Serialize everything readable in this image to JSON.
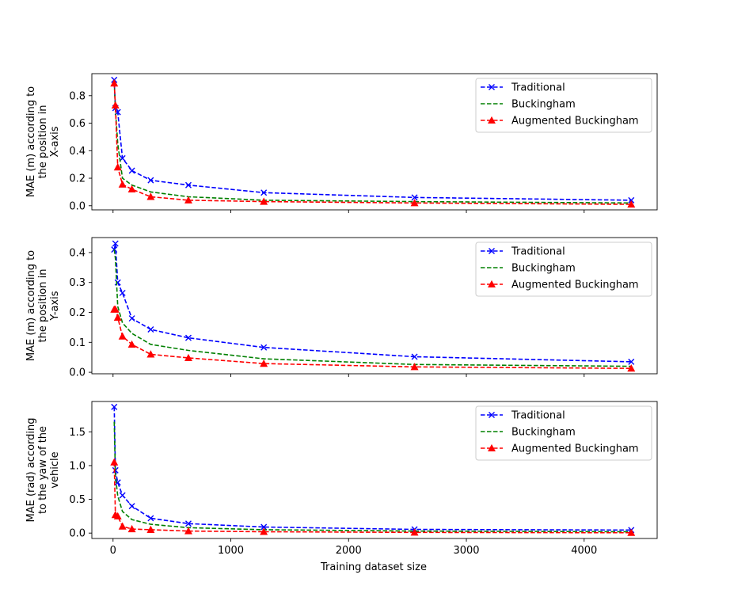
{
  "figure": {
    "xlabel": "Training dataset size"
  },
  "colors": {
    "Traditional": "#0000ff",
    "Buckingham": "#008000",
    "Augmented Buckingham": "#ff0000"
  },
  "chart_data": [
    {
      "type": "line",
      "ylabel_lines": [
        "MAE (m) according to",
        "the position in",
        "X-axis"
      ],
      "xlim": [
        -180,
        4620
      ],
      "ylim": [
        -0.03,
        0.96
      ],
      "xticks": [
        0,
        1000,
        2000,
        3000,
        4000
      ],
      "yticks": [
        0.0,
        0.2,
        0.4,
        0.6,
        0.8
      ],
      "ytick_labels": [
        "0.0",
        "0.2",
        "0.4",
        "0.6",
        "0.8"
      ],
      "legend_position": "top-right",
      "x": [
        10,
        20,
        40,
        80,
        160,
        320,
        640,
        1280,
        2560,
        4400
      ],
      "series": [
        {
          "name": "Traditional",
          "marker": "x",
          "values": [
            0.915,
            0.71,
            0.68,
            0.345,
            0.255,
            0.185,
            0.15,
            0.095,
            0.06,
            0.04
          ]
        },
        {
          "name": "Buckingham",
          "marker": "none",
          "values": [
            0.9,
            0.7,
            0.45,
            0.2,
            0.15,
            0.1,
            0.065,
            0.04,
            0.03,
            0.02
          ]
        },
        {
          "name": "Augmented Buckingham",
          "marker": "triangle",
          "values": [
            0.89,
            0.73,
            0.28,
            0.155,
            0.12,
            0.065,
            0.04,
            0.03,
            0.02,
            0.01
          ]
        }
      ]
    },
    {
      "type": "line",
      "ylabel_lines": [
        "MAE (m) according to",
        "the position in",
        "Y-axis"
      ],
      "xlim": [
        -180,
        4620
      ],
      "ylim": [
        -0.005,
        0.45
      ],
      "xticks": [
        0,
        1000,
        2000,
        3000,
        4000
      ],
      "yticks": [
        0.0,
        0.1,
        0.2,
        0.3,
        0.4
      ],
      "ytick_labels": [
        "0.0",
        "0.1",
        "0.2",
        "0.3",
        "0.4"
      ],
      "legend_position": "top-right",
      "x": [
        10,
        20,
        40,
        80,
        160,
        320,
        640,
        1280,
        2560,
        4400
      ],
      "series": [
        {
          "name": "Traditional",
          "marker": "x",
          "values": [
            0.41,
            0.43,
            0.3,
            0.265,
            0.18,
            0.143,
            0.115,
            0.083,
            0.052,
            0.035
          ]
        },
        {
          "name": "Buckingham",
          "marker": "none",
          "values": [
            0.41,
            0.38,
            0.22,
            0.165,
            0.13,
            0.093,
            0.073,
            0.045,
            0.026,
            0.02
          ]
        },
        {
          "name": "Augmented Buckingham",
          "marker": "triangle",
          "values": [
            0.21,
            0.21,
            0.183,
            0.12,
            0.093,
            0.06,
            0.048,
            0.029,
            0.018,
            0.013
          ]
        }
      ]
    },
    {
      "type": "line",
      "ylabel_lines": [
        "MAE (rad) according",
        "to the yaw of the",
        "vehicle"
      ],
      "xlim": [
        -180,
        4620
      ],
      "ylim": [
        -0.08,
        1.95
      ],
      "xticks": [
        0,
        1000,
        2000,
        3000,
        4000
      ],
      "yticks": [
        0.0,
        0.5,
        1.0,
        1.5
      ],
      "ytick_labels": [
        "0.0",
        "0.5",
        "1.0",
        "1.5"
      ],
      "legend_position": "top-right",
      "x": [
        10,
        20,
        40,
        80,
        160,
        320,
        640,
        1280,
        2560,
        4400
      ],
      "series": [
        {
          "name": "Traditional",
          "marker": "x",
          "values": [
            1.87,
            0.93,
            0.75,
            0.56,
            0.4,
            0.22,
            0.14,
            0.09,
            0.055,
            0.045
          ]
        },
        {
          "name": "Buckingham",
          "marker": "none",
          "values": [
            1.65,
            0.85,
            0.55,
            0.32,
            0.2,
            0.13,
            0.08,
            0.05,
            0.03,
            0.02
          ]
        },
        {
          "name": "Augmented Buckingham",
          "marker": "triangle",
          "values": [
            1.05,
            0.27,
            0.25,
            0.1,
            0.06,
            0.05,
            0.03,
            0.02,
            0.01,
            0.005
          ]
        }
      ]
    }
  ]
}
